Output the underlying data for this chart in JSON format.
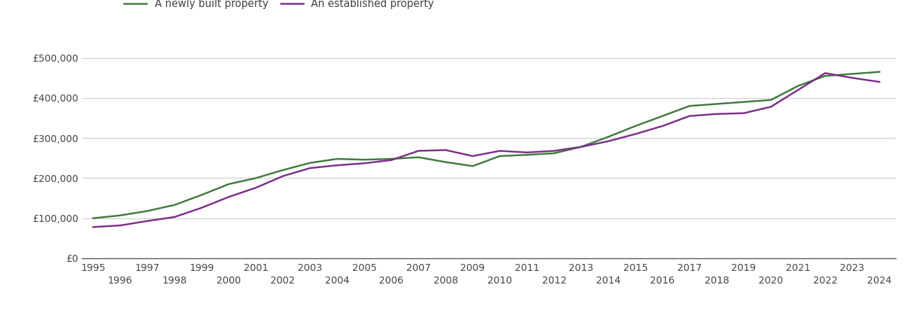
{
  "years": [
    1995,
    1996,
    1997,
    1998,
    1999,
    2000,
    2001,
    2002,
    2003,
    2004,
    2005,
    2006,
    2007,
    2008,
    2009,
    2010,
    2011,
    2012,
    2013,
    2014,
    2015,
    2016,
    2017,
    2018,
    2019,
    2020,
    2021,
    2022,
    2023,
    2024
  ],
  "new_build": [
    100000,
    107000,
    118000,
    133000,
    158000,
    185000,
    200000,
    220000,
    238000,
    248000,
    246000,
    248000,
    252000,
    240000,
    230000,
    255000,
    258000,
    262000,
    278000,
    303000,
    330000,
    355000,
    380000,
    385000,
    390000,
    395000,
    430000,
    455000,
    460000,
    465000
  ],
  "established": [
    78000,
    82000,
    93000,
    103000,
    126000,
    153000,
    176000,
    205000,
    225000,
    232000,
    237000,
    245000,
    268000,
    270000,
    255000,
    268000,
    264000,
    268000,
    278000,
    292000,
    310000,
    330000,
    355000,
    360000,
    362000,
    378000,
    420000,
    462000,
    450000,
    440000
  ],
  "new_build_color": "#3d7a3d",
  "established_color": "#7b2d8b",
  "new_build_label": "A newly built property",
  "established_label": "An established property",
  "ylim": [
    0,
    550000
  ],
  "yticks": [
    0,
    100000,
    200000,
    300000,
    400000,
    500000
  ],
  "ytick_labels": [
    "£0",
    "£100,000",
    "£200,000",
    "£300,000",
    "£400,000",
    "£500,000"
  ],
  "background_color": "#ffffff",
  "grid_color": "#cccccc",
  "line_width": 1.8,
  "legend_fontsize": 10.5,
  "tick_fontsize": 10.0
}
